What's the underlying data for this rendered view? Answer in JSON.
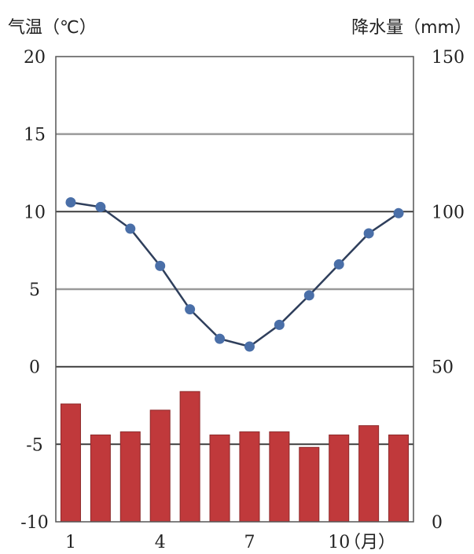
{
  "chart_data": {
    "type": "bar+line",
    "left_axis_title": "气温（℃）",
    "right_axis_title": "降水量（mm）",
    "x_unit_label": "（月）",
    "months": [
      1,
      2,
      3,
      4,
      5,
      6,
      7,
      8,
      9,
      10,
      11,
      12
    ],
    "x_tick_labels": [
      "1",
      "4",
      "7",
      "10"
    ],
    "x_tick_months": [
      1,
      4,
      7,
      10
    ],
    "temperature": {
      "values": [
        10.6,
        10.3,
        8.9,
        6.5,
        3.7,
        1.8,
        1.3,
        2.7,
        4.6,
        6.6,
        8.6,
        9.9
      ],
      "ylim": [
        -10,
        20
      ],
      "ticks": [
        20,
        15,
        10,
        5,
        0,
        -5,
        -10
      ],
      "color": "#4a6fa8"
    },
    "precipitation": {
      "values": [
        38,
        28,
        29,
        36,
        42,
        28,
        29,
        29,
        24,
        28,
        31,
        28
      ],
      "ylim": [
        0,
        150
      ],
      "ticks": [
        150,
        100,
        50,
        0
      ],
      "color": "#c0393b"
    },
    "grid": true,
    "colors": {
      "gridline": "#9a9a9a",
      "zero_line": "#333333",
      "frame": "#555555"
    }
  }
}
